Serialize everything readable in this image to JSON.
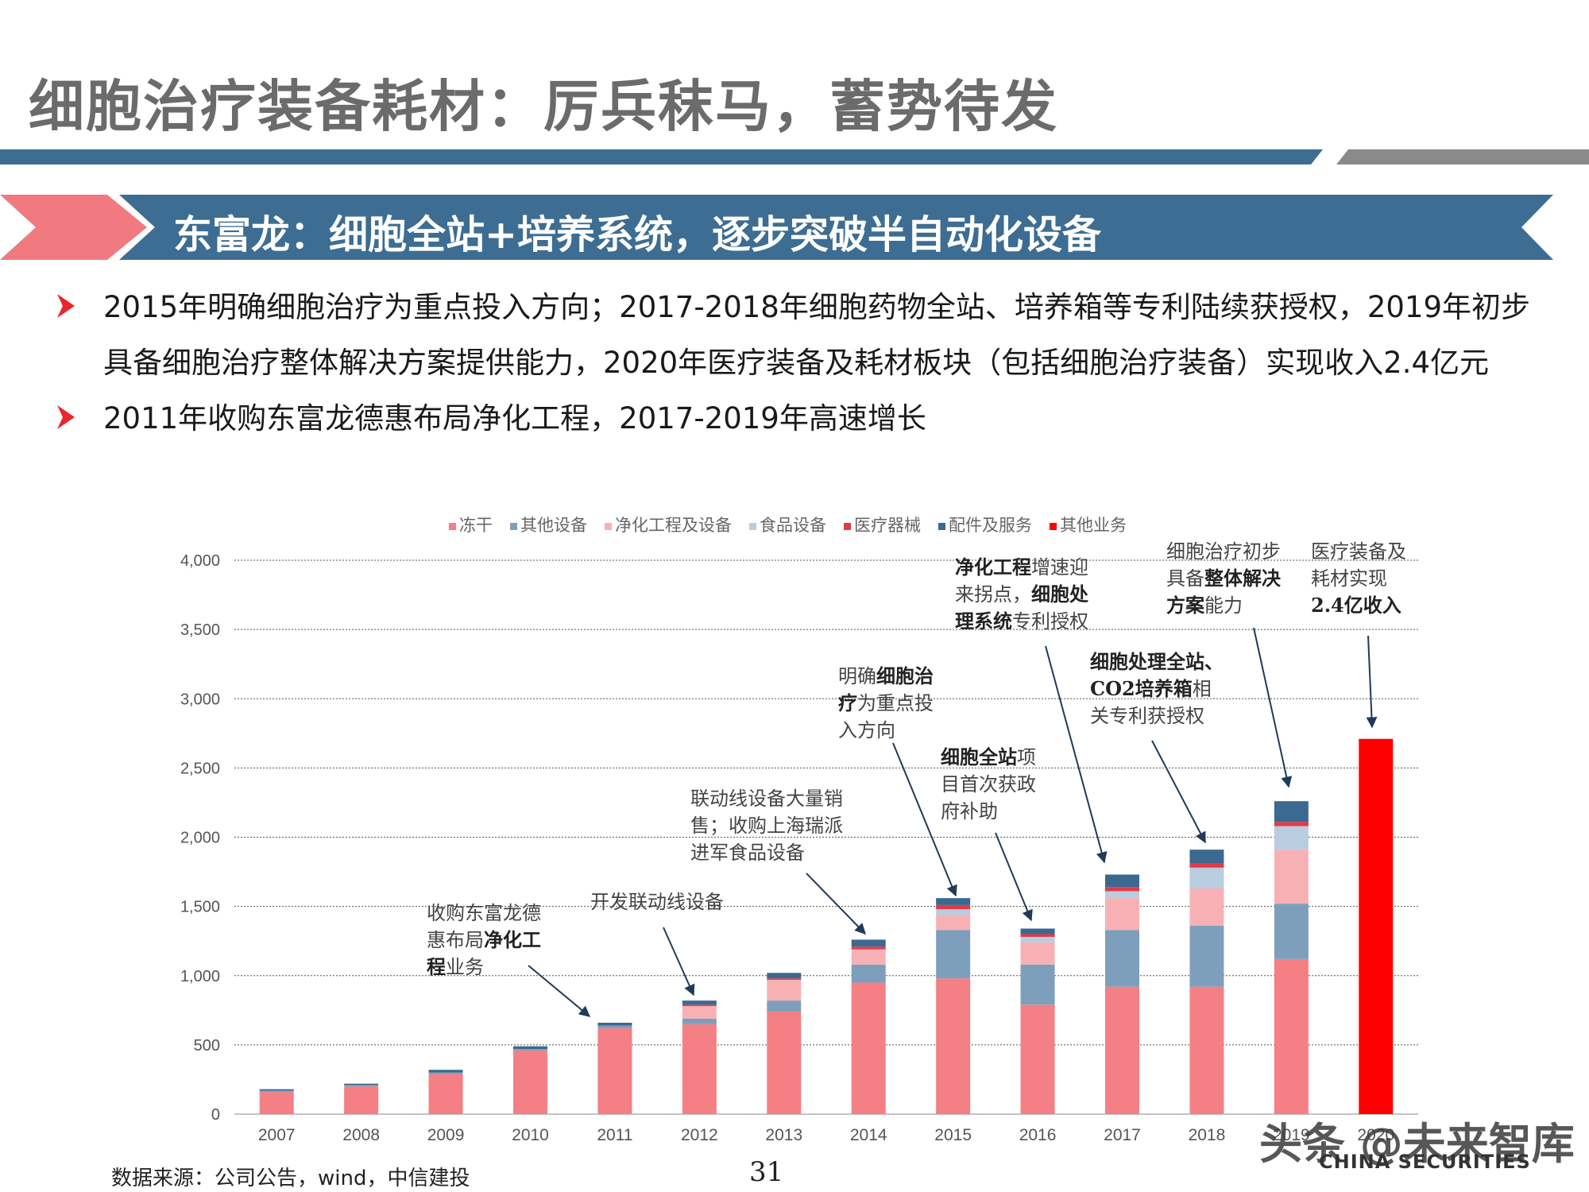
{
  "page": {
    "title": "细胞治疗装备耗材：厉兵秣马，蓄势待发",
    "banner": "东富龙：细胞全站+培养系统，逐步突破半自动化设备",
    "bullets": [
      "2015年明确细胞治疗为重点投入方向；2017-2018年细胞药物全站、培养箱等专利陆续获授权，2019年初步具备细胞治疗整体解决方案提供能力，2020年医疗装备及耗材板块（包括细胞治疗装备）实现收入2.4亿元",
      "2011年收购东富龙德惠布局净化工程，2017-2019年高速增长"
    ],
    "source": "数据来源：公司公告，wind，中信建投",
    "page_number": "31",
    "watermark": "头条 @未来智库",
    "watermark_sub": "CHINA SECURITIES"
  },
  "colors": {
    "title_gray": "#6b6b6b",
    "banner_blue": "#3d6d92",
    "accent_pink": "#f07a80",
    "bullet_red": "#e8262b"
  },
  "annotations": {
    "a2011": {
      "l1": "收购东富龙德",
      "l2a": "惠布局",
      "l2b": "净化工",
      "l3a": "程",
      "l3b": "业务"
    },
    "a2012": {
      "l1": "开发联动线设备"
    },
    "a2013": {
      "l1": "联动线设备大量销",
      "l2": "售；收购上海瑞派",
      "l3": "进军食品设备"
    },
    "a2015": {
      "l1a": "明确",
      "l1b": "细胞治",
      "l2a": "疗",
      "l2b": "为重点投",
      "l3": "入方向"
    },
    "a2016": {
      "l1a": "细胞全站",
      "l1b": "项",
      "l2": "目首次获政",
      "l3": "府补助"
    },
    "a2017": {
      "l1a": "净化工程",
      "l1b": "增速迎",
      "l2a": "来拐点，",
      "l2b": "细胞处",
      "l3a": "理系统",
      "l3b": "专利授权"
    },
    "a2018": {
      "l1": "细胞处理全站、",
      "l2a": "CO2培养箱",
      "l2b": "相",
      "l3": "关专利获授权"
    },
    "a2019": {
      "l1": "细胞治疗初步",
      "l2a": "具备",
      "l2b": "整体解决",
      "l3a": "方案",
      "l3b": "能力"
    },
    "a2020": {
      "l1": "医疗装备及",
      "l2": "耗材实现",
      "l3": "2.4亿收入"
    }
  },
  "chart_data": {
    "type": "bar",
    "stacked": true,
    "categories": [
      "2007",
      "2008",
      "2009",
      "2010",
      "2011",
      "2012",
      "2013",
      "2014",
      "2015",
      "2016",
      "2017",
      "2018",
      "2019",
      "2020"
    ],
    "ylim": [
      0,
      4000
    ],
    "yticks": [
      "0",
      "500",
      "1,000",
      "1,500",
      "2,000",
      "2,500",
      "3,000",
      "3,500",
      "4,000"
    ],
    "ytick_values": [
      0,
      500,
      1000,
      1500,
      2000,
      2500,
      3000,
      3500,
      4000
    ],
    "grid": true,
    "legend_position": "top",
    "series": [
      {
        "name": "冻干",
        "color": "#f47f84",
        "values": [
          160,
          200,
          290,
          460,
          620,
          650,
          740,
          950,
          980,
          790,
          920,
          920,
          1120,
          0
        ]
      },
      {
        "name": "其他设备",
        "color": "#7e9fbc",
        "values": [
          10,
          10,
          10,
          10,
          20,
          40,
          80,
          130,
          350,
          290,
          410,
          440,
          400,
          0
        ]
      },
      {
        "name": "净化工程及设备",
        "color": "#f7b1b5",
        "values": [
          0,
          0,
          0,
          0,
          0,
          90,
          150,
          110,
          110,
          160,
          230,
          270,
          390,
          0
        ]
      },
      {
        "name": "食品设备",
        "color": "#b9cde0",
        "values": [
          0,
          0,
          0,
          0,
          0,
          0,
          0,
          0,
          40,
          40,
          50,
          150,
          170,
          0
        ]
      },
      {
        "name": "医疗器械",
        "color": "#e43a46",
        "values": [
          0,
          0,
          0,
          0,
          0,
          10,
          10,
          20,
          30,
          20,
          30,
          30,
          30,
          0
        ]
      },
      {
        "name": "配件及服务",
        "color": "#3b6990",
        "values": [
          10,
          10,
          20,
          20,
          20,
          30,
          40,
          50,
          50,
          40,
          90,
          100,
          150,
          0
        ]
      },
      {
        "name": "其他业务",
        "color": "#ff0000",
        "values": [
          0,
          0,
          0,
          0,
          0,
          0,
          0,
          0,
          0,
          0,
          0,
          0,
          0,
          2710
        ]
      }
    ]
  }
}
